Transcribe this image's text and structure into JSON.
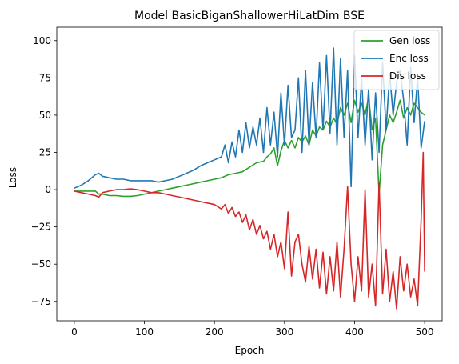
{
  "chart_data": {
    "type": "line",
    "title": "Model BasicBiganShallowerHiLatDim BSE",
    "xlabel": "Epoch",
    "ylabel": "Loss",
    "xlim": [
      -25,
      525
    ],
    "ylim": [
      -88,
      109
    ],
    "xticks": [
      0,
      100,
      200,
      300,
      400,
      500
    ],
    "yticks": [
      -75,
      -50,
      -25,
      0,
      25,
      50,
      75,
      100
    ],
    "legend_position": "top-right",
    "grid": false,
    "series": [
      {
        "name": "Gen loss",
        "color": "#2ca02c",
        "x": [
          0,
          10,
          20,
          30,
          35,
          40,
          50,
          60,
          70,
          80,
          90,
          100,
          110,
          120,
          130,
          140,
          150,
          160,
          170,
          180,
          190,
          200,
          210,
          220,
          230,
          240,
          250,
          260,
          270,
          275,
          280,
          285,
          290,
          295,
          300,
          305,
          310,
          315,
          320,
          325,
          330,
          335,
          340,
          345,
          350,
          355,
          360,
          365,
          370,
          375,
          380,
          385,
          390,
          395,
          400,
          405,
          410,
          415,
          420,
          425,
          430,
          435,
          440,
          445,
          450,
          455,
          460,
          465,
          470,
          475,
          480,
          485,
          490,
          495,
          500
        ],
        "y": [
          -1,
          -1,
          -1,
          -1,
          -3,
          -3,
          -4,
          -4,
          -4.5,
          -4.5,
          -4,
          -3,
          -2,
          -1,
          0,
          1,
          2,
          3,
          4,
          5,
          6,
          7,
          8,
          10,
          11,
          12,
          15,
          18,
          19,
          22,
          24,
          28,
          16,
          26,
          33,
          28,
          33,
          28,
          35,
          32,
          36,
          30,
          40,
          36,
          42,
          40,
          46,
          42,
          48,
          44,
          55,
          50,
          58,
          45,
          60,
          52,
          58,
          50,
          62,
          40,
          48,
          -3,
          30,
          40,
          50,
          45,
          52,
          60,
          48,
          55,
          50,
          58,
          55,
          52,
          50
        ]
      },
      {
        "name": "Enc loss",
        "color": "#1f77b4",
        "x": [
          0,
          10,
          20,
          30,
          35,
          40,
          50,
          60,
          70,
          80,
          90,
          100,
          110,
          120,
          130,
          140,
          150,
          160,
          170,
          180,
          190,
          200,
          210,
          215,
          220,
          225,
          230,
          235,
          240,
          245,
          250,
          255,
          260,
          265,
          270,
          275,
          280,
          285,
          290,
          295,
          300,
          305,
          310,
          315,
          320,
          325,
          330,
          335,
          340,
          345,
          350,
          355,
          360,
          365,
          370,
          375,
          380,
          385,
          390,
          395,
          400,
          405,
          410,
          415,
          420,
          425,
          430,
          435,
          440,
          445,
          450,
          455,
          460,
          465,
          470,
          475,
          480,
          485,
          490,
          495,
          500
        ],
        "y": [
          1,
          3,
          6,
          10,
          11,
          9,
          8,
          7,
          7,
          6,
          6,
          6,
          6,
          5,
          6,
          7,
          9,
          11,
          13,
          16,
          18,
          20,
          22,
          30,
          18,
          32,
          22,
          40,
          25,
          45,
          28,
          42,
          30,
          48,
          25,
          55,
          30,
          52,
          22,
          65,
          30,
          70,
          35,
          40,
          75,
          25,
          80,
          30,
          72,
          35,
          85,
          40,
          90,
          38,
          95,
          30,
          88,
          35,
          80,
          2,
          90,
          35,
          75,
          30,
          68,
          20,
          65,
          25,
          85,
          40,
          78,
          50,
          72,
          80,
          60,
          30,
          82,
          45,
          75,
          28,
          46
        ]
      },
      {
        "name": "Dis loss",
        "color": "#d62728",
        "x": [
          0,
          10,
          20,
          30,
          35,
          40,
          50,
          60,
          70,
          80,
          90,
          100,
          110,
          120,
          130,
          140,
          150,
          160,
          170,
          180,
          190,
          200,
          210,
          215,
          220,
          225,
          230,
          235,
          240,
          245,
          250,
          255,
          260,
          265,
          270,
          275,
          280,
          285,
          290,
          295,
          300,
          305,
          310,
          315,
          320,
          325,
          330,
          335,
          340,
          345,
          350,
          355,
          360,
          365,
          370,
          375,
          380,
          385,
          390,
          395,
          400,
          405,
          410,
          415,
          420,
          425,
          430,
          435,
          440,
          445,
          450,
          455,
          460,
          465,
          470,
          475,
          480,
          485,
          490,
          495,
          498,
          500
        ],
        "y": [
          -1,
          -2,
          -3,
          -4,
          -5,
          -2,
          -1,
          0,
          0,
          0.5,
          0,
          -1,
          -2,
          -2,
          -3,
          -4,
          -5,
          -6,
          -7,
          -8,
          -9,
          -10,
          -13,
          -10,
          -16,
          -12,
          -18,
          -15,
          -22,
          -17,
          -27,
          -20,
          -30,
          -24,
          -33,
          -28,
          -40,
          -30,
          -45,
          -35,
          -53,
          -15,
          -58,
          -35,
          -30,
          -50,
          -62,
          -38,
          -60,
          -40,
          -66,
          -42,
          -70,
          -45,
          -68,
          -35,
          -72,
          -40,
          2,
          -50,
          -75,
          -45,
          -68,
          0,
          -72,
          -50,
          -78,
          5,
          -70,
          -40,
          -75,
          -55,
          -80,
          -45,
          -68,
          -50,
          -72,
          -60,
          -78,
          -20,
          25,
          -55
        ]
      }
    ]
  }
}
